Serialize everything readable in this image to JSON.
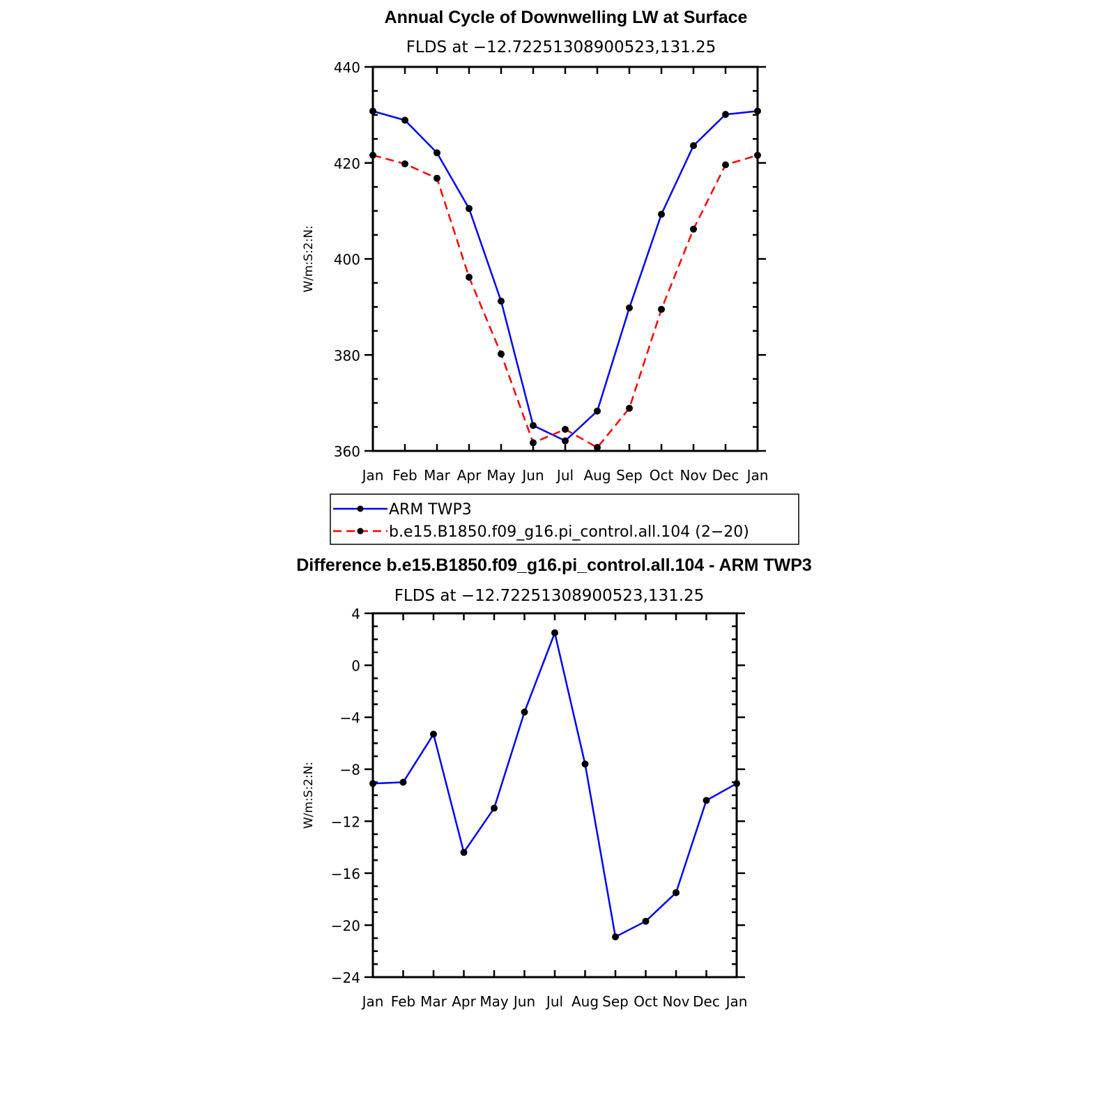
{
  "chart_data": [
    {
      "type": "line",
      "title": "Annual Cycle of Downwelling LW at Surface",
      "subtitle": "FLDS at −12.72251308900523,131.25",
      "ylabel": "W/m:S:2:N:",
      "xlabel": "",
      "categories": [
        "Jan",
        "Feb",
        "Mar",
        "Apr",
        "May",
        "Jun",
        "Jul",
        "Aug",
        "Sep",
        "Oct",
        "Nov",
        "Dec",
        "Jan"
      ],
      "ylim": [
        360,
        440
      ],
      "yticks": [
        "360",
        "380",
        "400",
        "420",
        "440"
      ],
      "series": [
        {
          "name": "ARM TWP3",
          "color": "#0000ff",
          "dash": "solid",
          "values": [
            430.8,
            428.9,
            422.1,
            410.5,
            391.2,
            365.3,
            362.1,
            368.3,
            389.8,
            409.3,
            423.6,
            430.1,
            430.8
          ]
        },
        {
          "name": "b.e15.B1850.f09_g16.pi_control.all.104 (2−20)",
          "color": "#ff0000",
          "dash": "dashed",
          "values": [
            421.6,
            419.8,
            416.8,
            396.2,
            380.2,
            361.7,
            364.5,
            360.7,
            368.9,
            389.5,
            406.2,
            419.6,
            421.6
          ]
        }
      ],
      "legend": "below"
    },
    {
      "type": "line",
      "title": "Difference b.e15.B1850.f09_g16.pi_control.all.104 - ARM TWP3",
      "subtitle": "FLDS at −12.72251308900523,131.25",
      "ylabel": "W/m:S:2:N:",
      "xlabel": "",
      "categories": [
        "Jan",
        "Feb",
        "Mar",
        "Apr",
        "May",
        "Jun",
        "Jul",
        "Aug",
        "Sep",
        "Oct",
        "Nov",
        "Dec",
        "Jan"
      ],
      "ylim": [
        -24,
        4
      ],
      "yticks": [
        "−24",
        "−20",
        "−16",
        "−12",
        "−8",
        "−4",
        "0",
        "4"
      ],
      "series": [
        {
          "name": "Difference",
          "color": "#0000ff",
          "dash": "solid",
          "values": [
            -9.1,
            -9.0,
            -5.3,
            -14.4,
            -11.0,
            -3.6,
            2.5,
            -7.6,
            -20.9,
            -19.7,
            -17.5,
            -10.4,
            -9.1
          ]
        }
      ]
    }
  ]
}
